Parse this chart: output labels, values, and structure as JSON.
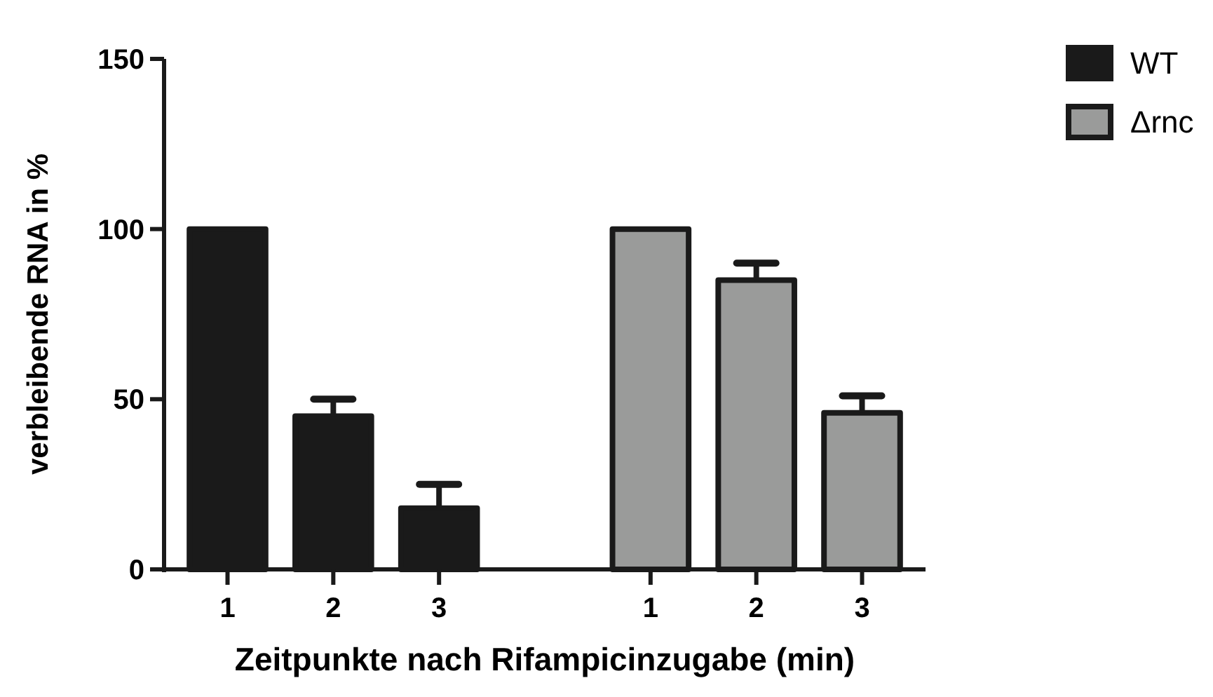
{
  "chart_data": {
    "type": "bar",
    "xlabel": "Zeitpunkte nach Rifampicinzugabe (min)",
    "ylabel": "verbleibende RNA in %",
    "categories": [
      "1",
      "2",
      "3",
      null,
      "1",
      "2",
      "3"
    ],
    "series": [
      {
        "name": "WT",
        "color": "#1a1a1a",
        "values": [
          100,
          45,
          18,
          null,
          null,
          null,
          null
        ],
        "errors": [
          null,
          [
            45,
            50
          ],
          [
            18,
            25
          ],
          null,
          null,
          null,
          null
        ]
      },
      {
        "name": "Δrnc",
        "color": "#9a9b9a",
        "values": [
          null,
          null,
          null,
          null,
          100,
          85,
          46
        ],
        "errors": [
          null,
          null,
          null,
          null,
          null,
          [
            85,
            90
          ],
          [
            46,
            51
          ]
        ]
      }
    ],
    "ylim": [
      0,
      150
    ],
    "yticks": [
      0,
      50,
      100,
      150
    ],
    "grid": false,
    "legend": "top right"
  }
}
